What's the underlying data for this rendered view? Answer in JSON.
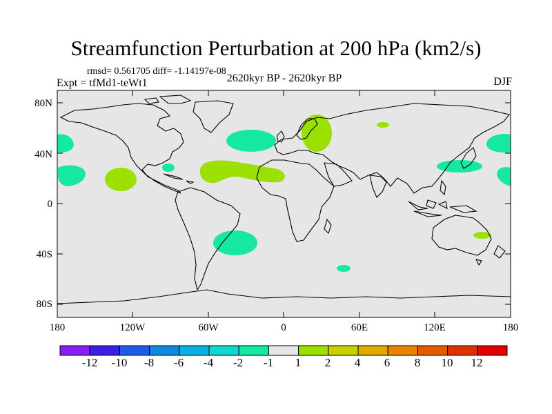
{
  "title": "Streamfunction Perturbation at 200 hPa (km2/s)",
  "stats": "rmsd= 0.561705 diff= -1.14197e-08",
  "experiment": "Expt = tfMd1-teWt1",
  "period": "2620kyr BP - 2620kyr BP",
  "season": "DJF",
  "y_axis_labels": [
    "80N",
    "40N",
    "0",
    "40S",
    "80S"
  ],
  "x_axis_labels": [
    "180",
    "120W",
    "60W",
    "0",
    "60E",
    "120E",
    "180"
  ],
  "colorbar": {
    "labels": [
      "-12",
      "-10",
      "-8",
      "-6",
      "-4",
      "-2",
      "-1",
      "1",
      "2",
      "4",
      "6",
      "8",
      "10",
      "12"
    ],
    "colors": [
      "#8b1cf0",
      "#3a20e0",
      "#1e5be6",
      "#1188dd",
      "#0bb0e0",
      "#10d8d0",
      "#17e8a0",
      "#e6e6e6",
      "#9be000",
      "#c8d000",
      "#e0aa00",
      "#e68600",
      "#e05a00",
      "#dc3200",
      "#e00000"
    ]
  },
  "colors": {
    "ocean": "#e6e6e6",
    "negative_anomaly": "#17e8a0",
    "positive_anomaly": "#9be000",
    "coast": "#000000"
  }
}
